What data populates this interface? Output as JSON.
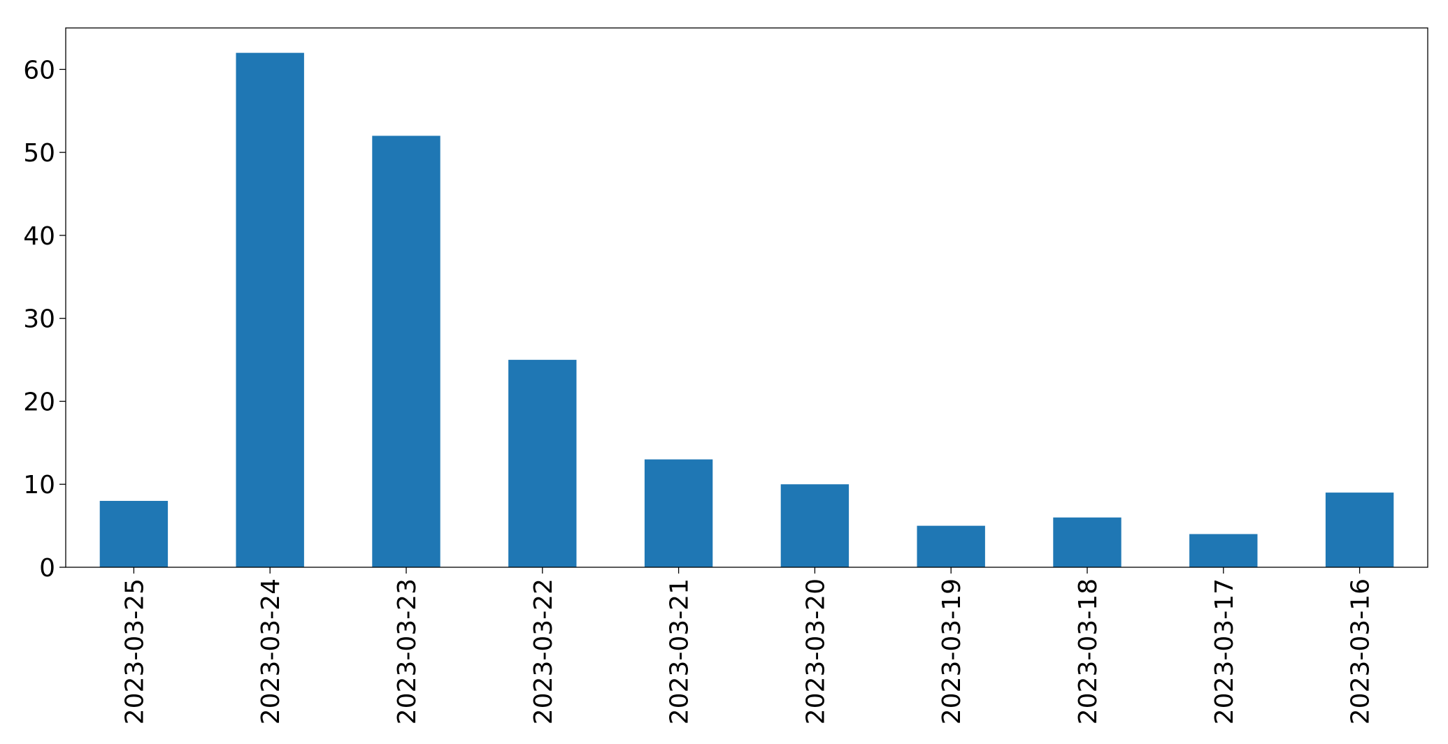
{
  "chart_data": {
    "type": "bar",
    "categories": [
      "2023-03-25",
      "2023-03-24",
      "2023-03-23",
      "2023-03-22",
      "2023-03-21",
      "2023-03-20",
      "2023-03-19",
      "2023-03-18",
      "2023-03-17",
      "2023-03-16"
    ],
    "values": [
      8,
      62,
      52,
      25,
      13,
      10,
      5,
      6,
      4,
      9
    ],
    "color": "#1f77b4",
    "ylim": [
      0,
      65
    ],
    "yticks": [
      0,
      10,
      20,
      30,
      40,
      50,
      60
    ],
    "grid": false
  }
}
